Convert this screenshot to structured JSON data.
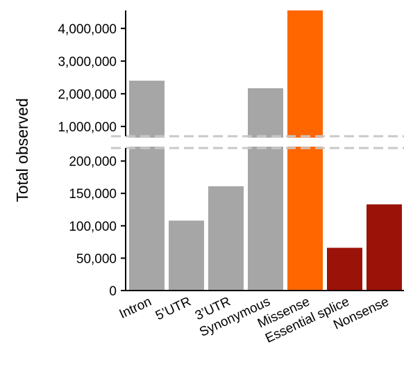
{
  "chart_data": {
    "type": "bar",
    "title": "",
    "xlabel": "",
    "ylabel": "Total observed",
    "broken_y_axis": true,
    "y_scale": "broken",
    "grid": false,
    "legend": "none",
    "categories": [
      "Intron",
      "5’UTR",
      "3’UTR",
      "Synonymous",
      "Missense",
      "Essential splice",
      "Nonsense"
    ],
    "values": [
      2400000,
      108000,
      161000,
      2170000,
      4550000,
      66000,
      133000
    ],
    "colors": [
      "#a6a6a6",
      "#a6a6a6",
      "#a6a6a6",
      "#a6a6a6",
      "#ff6600",
      "#9b1208",
      "#9b1208"
    ],
    "lower_segment": {
      "ylim": [
        0,
        220000
      ],
      "ticks": [
        0,
        50000,
        100000,
        150000,
        200000
      ],
      "tick_labels": [
        "0",
        "50,000",
        "100,000",
        "150,000",
        "200,000"
      ]
    },
    "upper_segment": {
      "ylim": [
        700000,
        4550000
      ],
      "ticks": [
        1000000,
        2000000,
        3000000,
        4000000
      ],
      "tick_labels": [
        "1,000,000",
        "2,000,000",
        "3,000,000",
        "4,000,000"
      ]
    }
  }
}
